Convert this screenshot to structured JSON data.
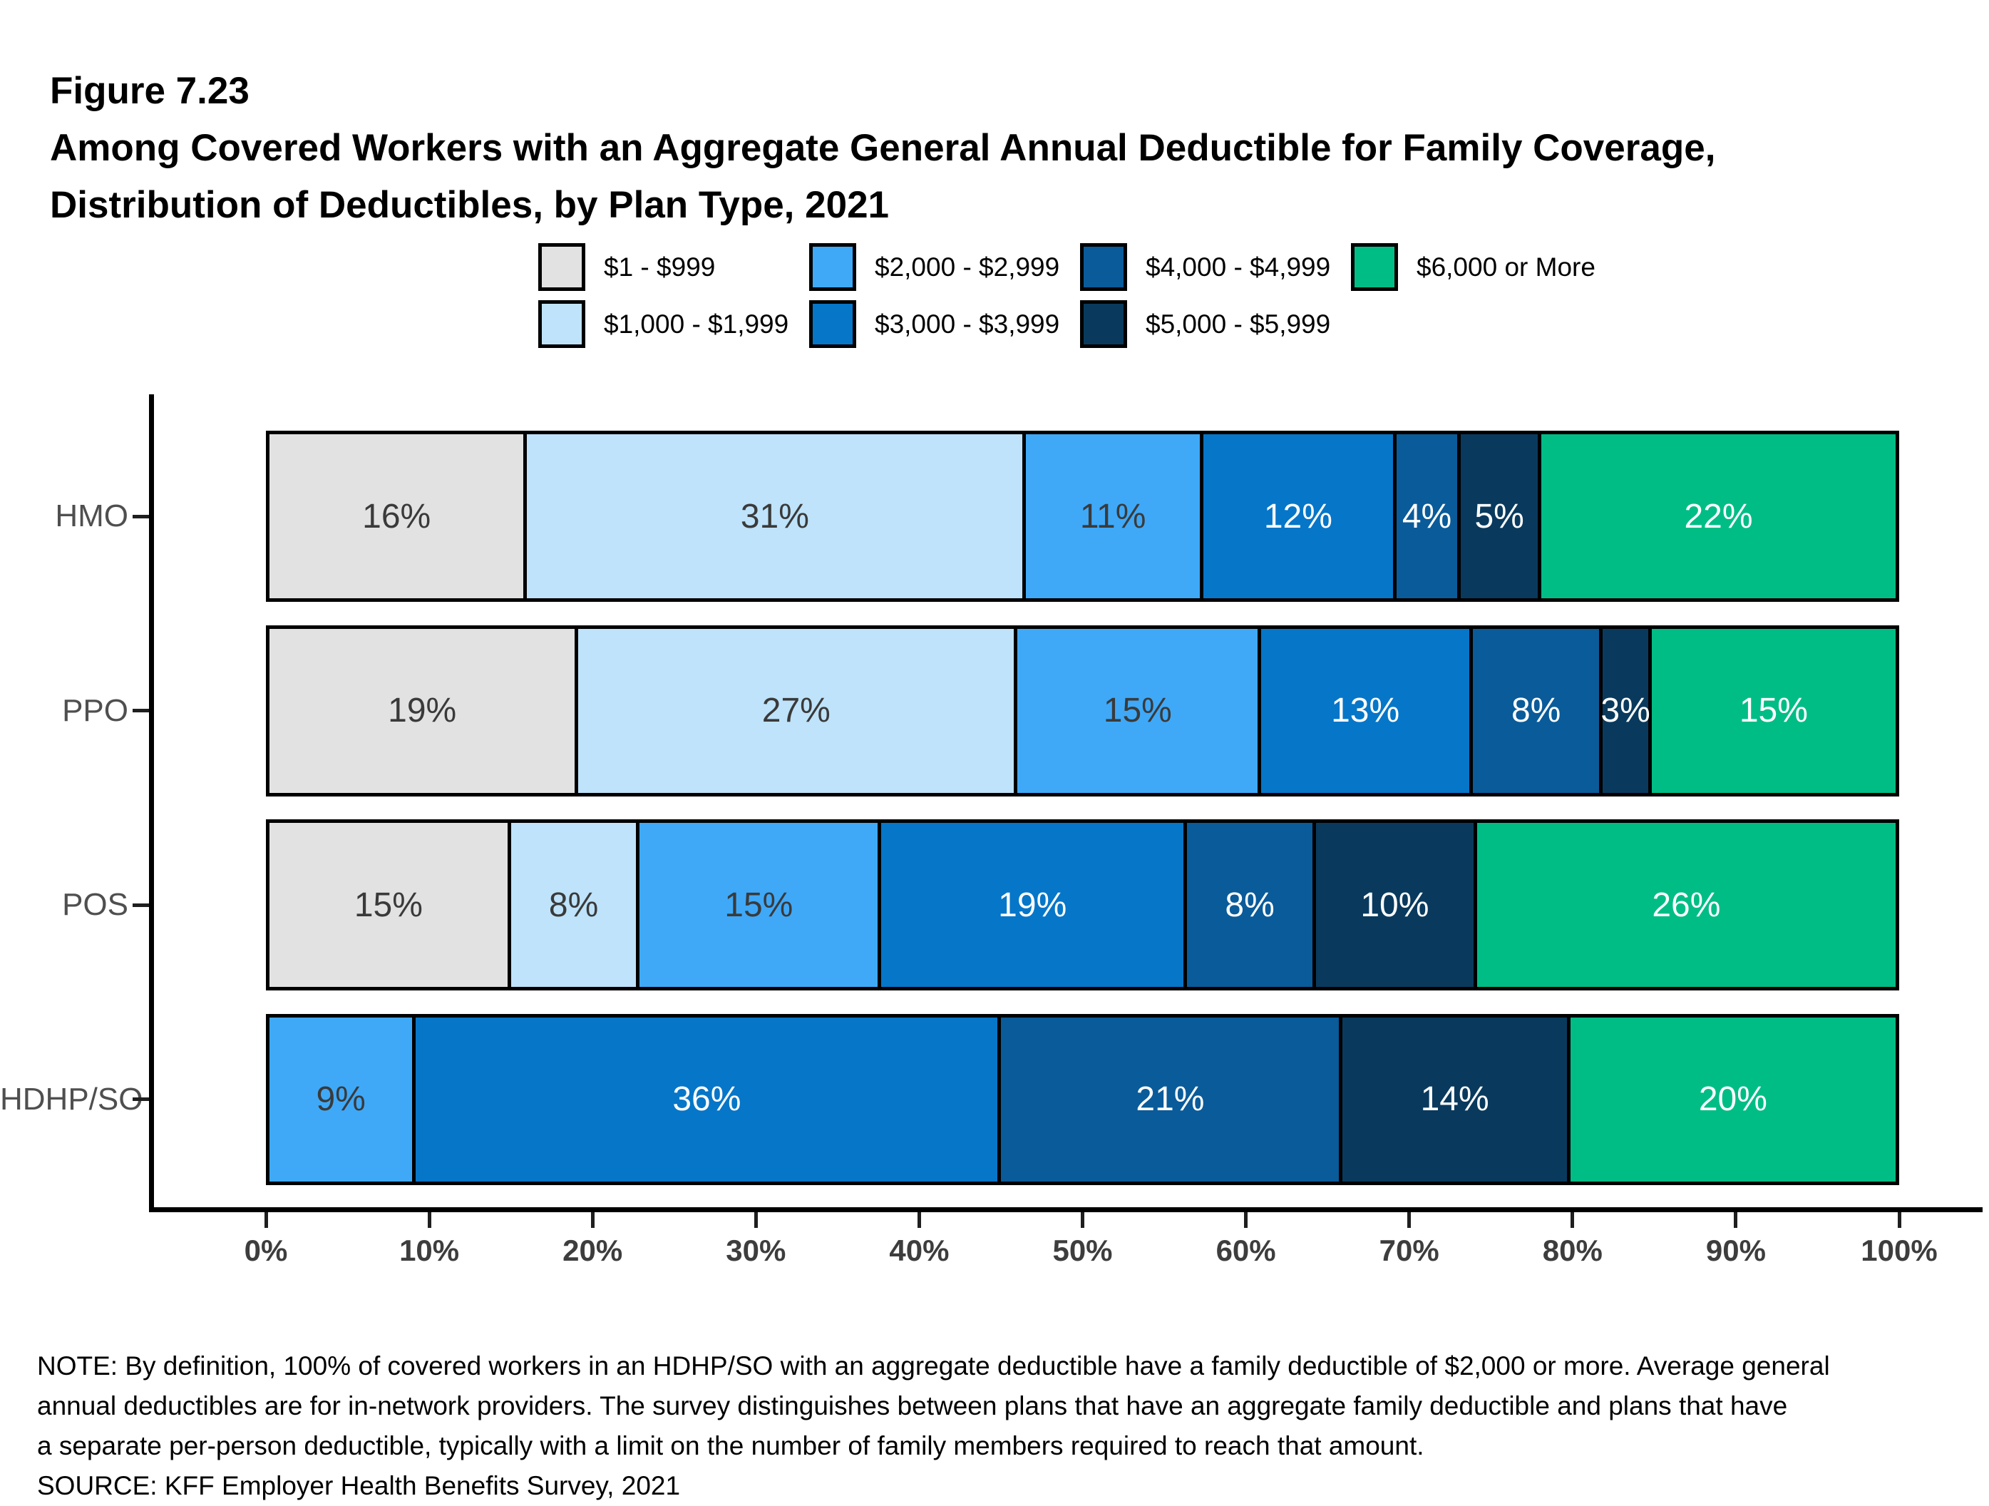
{
  "figure": {
    "label": "Figure 7.23",
    "title_line1": "Among Covered Workers with an Aggregate General Annual Deductible for Family Coverage,",
    "title_line2": "Distribution of Deductibles, by Plan Type, 2021"
  },
  "chart_data": {
    "type": "bar",
    "subtype": "stacked-horizontal",
    "title": "Distribution of Deductibles, by Plan Type, 2021",
    "categories": [
      "HMO",
      "PPO",
      "POS",
      "HDHP/SO"
    ],
    "series": [
      {
        "name": "$1 - $999",
        "color": "#E2E2E2",
        "text_color": "#3A3A3A",
        "values": [
          16,
          19,
          15,
          0
        ]
      },
      {
        "name": "$1,000 - $1,999",
        "color": "#BEE3FA",
        "text_color": "#3A3A3A",
        "values": [
          31,
          27,
          8,
          0
        ]
      },
      {
        "name": "$2,000 - $2,999",
        "color": "#3FA9F8",
        "text_color": "#3A3A3A",
        "values": [
          11,
          15,
          15,
          9
        ]
      },
      {
        "name": "$3,000 - $3,999",
        "color": "#0676C8",
        "text_color": "#FFFFFF",
        "values": [
          12,
          13,
          19,
          36
        ]
      },
      {
        "name": "$4,000 - $4,999",
        "color": "#0A5B99",
        "text_color": "#FFFFFF",
        "values": [
          4,
          8,
          8,
          21
        ]
      },
      {
        "name": "$5,000 - $5,999",
        "color": "#093A5D",
        "text_color": "#FFFFFF",
        "values": [
          5,
          3,
          10,
          14
        ]
      },
      {
        "name": "$6,000 or More",
        "color": "#00BD86",
        "text_color": "#FFFFFF",
        "values": [
          22,
          15,
          26,
          20
        ]
      }
    ],
    "value_suffix": "%",
    "x_axis": {
      "range": [
        0,
        100
      ],
      "ticks": [
        "0%",
        "10%",
        "20%",
        "30%",
        "40%",
        "50%",
        "60%",
        "70%",
        "80%",
        "90%",
        "100%"
      ]
    },
    "legend_position": "top",
    "grid": false
  },
  "note": {
    "lines": [
      "NOTE: By definition, 100% of covered workers in an HDHP/SO with an aggregate deductible have a family deductible of $2,000 or more. Average general",
      "annual deductibles are for in-network providers. The survey distinguishes between plans that have an aggregate family deductible and plans that have",
      "a separate per-person deductible, typically with a limit on the number of family members required to reach that amount."
    ],
    "source": "SOURCE: KFF Employer Health Benefits Survey, 2021"
  }
}
